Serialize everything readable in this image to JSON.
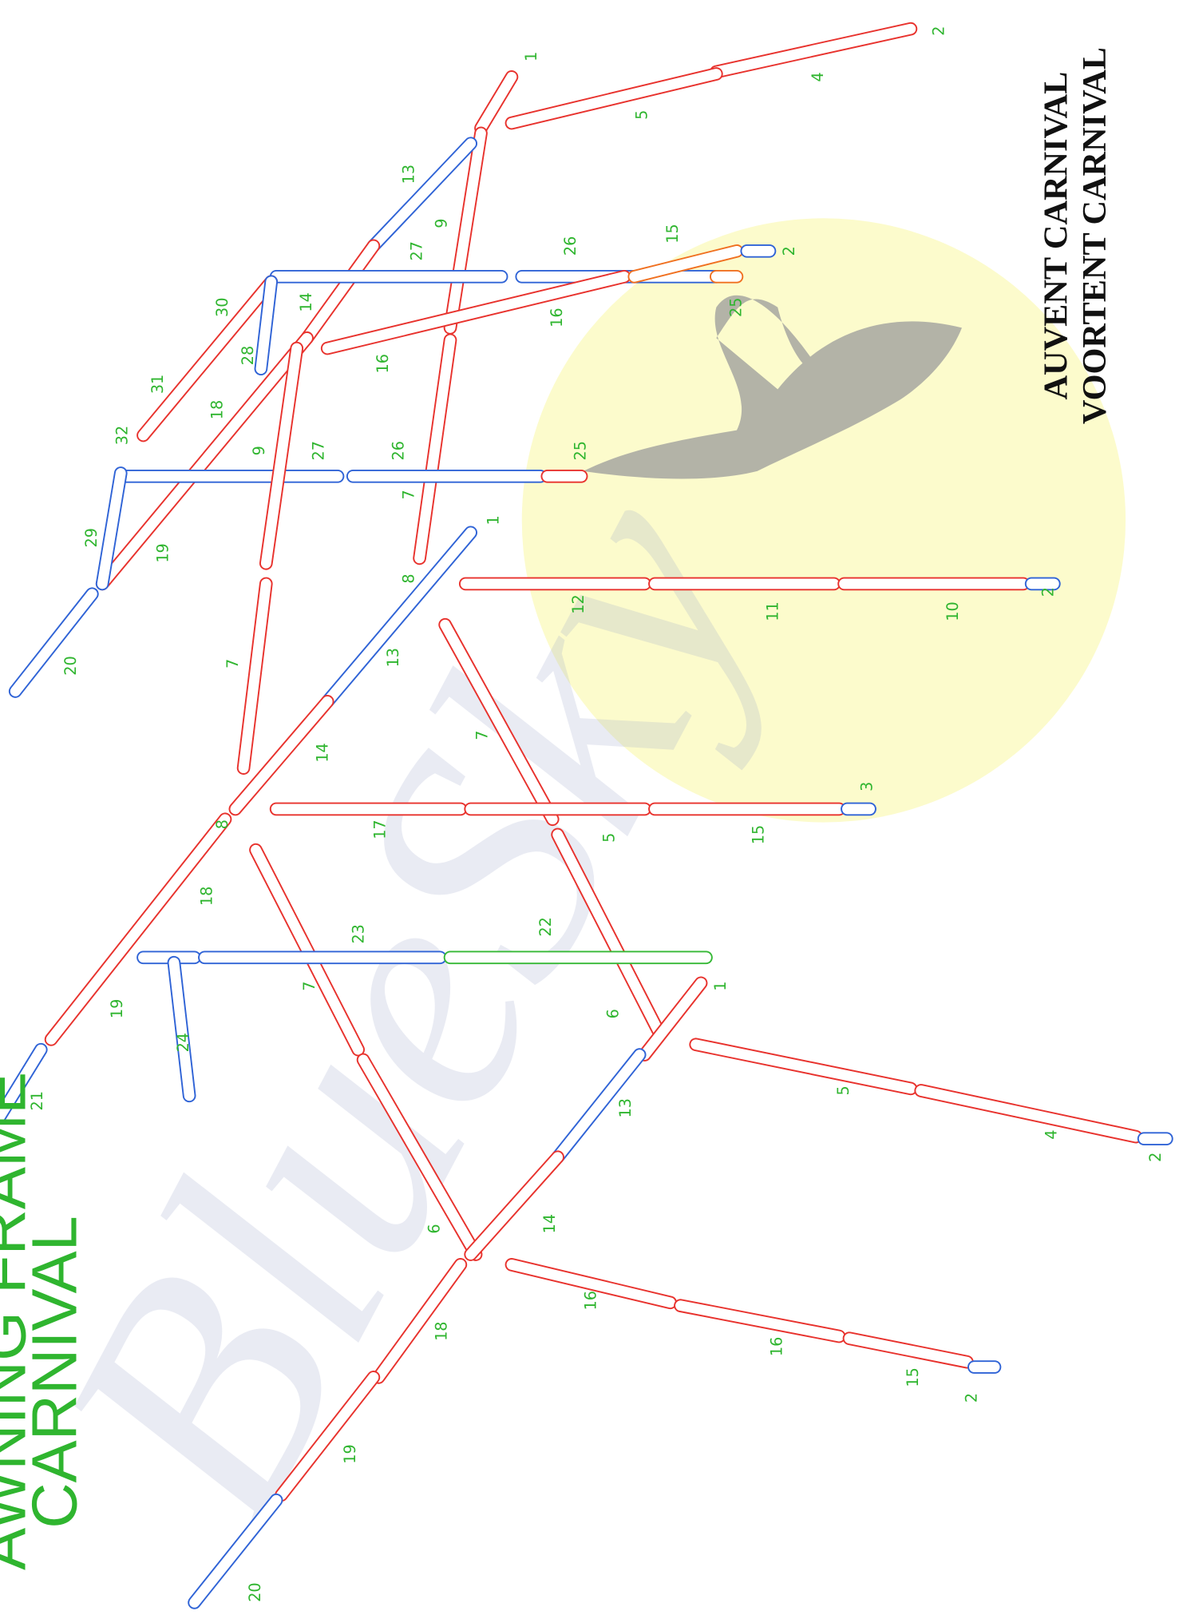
{
  "title": [
    "AWNING FRAME",
    "CARNIVAL"
  ],
  "heading": [
    "AUVENT CARNIVAL",
    "VOORTENT CARNIVAL"
  ],
  "watermark": "BlueSky",
  "labels": [
    "1",
    "2",
    "4",
    "5",
    "13",
    "9",
    "27",
    "26",
    "15",
    "2",
    "25",
    "16",
    "16",
    "30",
    "14",
    "28",
    "31",
    "18",
    "32",
    "9",
    "27",
    "26",
    "25",
    "7",
    "29",
    "19",
    "1",
    "8",
    "12",
    "11",
    "10",
    "2",
    "20",
    "13",
    "7",
    "7",
    "14",
    "3",
    "8",
    "17",
    "5",
    "15",
    "18",
    "23",
    "22",
    "7",
    "19",
    "24",
    "6",
    "1",
    "21",
    "13",
    "5",
    "4",
    "2",
    "14",
    "6",
    "16",
    "18",
    "16",
    "15",
    "2",
    "19",
    "20"
  ]
}
